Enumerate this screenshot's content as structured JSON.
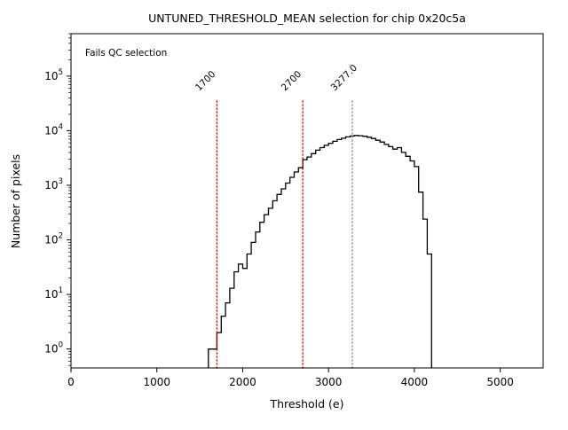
{
  "chart_data": {
    "type": "bar",
    "title": "UNTUNED_THRESHOLD_MEAN selection for chip 0x20c5a",
    "xlabel": "Threshold (e)",
    "ylabel": "Number of pixels",
    "x_scale": "linear",
    "y_scale": "log",
    "xlim": [
      0,
      5500
    ],
    "ylim": [
      0.45,
      600000
    ],
    "x_ticks": [
      0,
      1000,
      2000,
      3000,
      4000,
      5000
    ],
    "y_tick_exponents": [
      0,
      1,
      2,
      3,
      4,
      5
    ],
    "grid": false,
    "legend": null,
    "histogram": {
      "bin_start": 1600,
      "bin_width": 50,
      "color": "#000000",
      "counts": [
        1,
        1,
        2,
        4,
        7,
        13,
        26,
        36,
        30,
        55,
        90,
        140,
        210,
        290,
        380,
        520,
        680,
        860,
        1100,
        1400,
        1750,
        2100,
        2950,
        3300,
        3800,
        4400,
        4900,
        5400,
        5900,
        6400,
        6900,
        7300,
        7700,
        8000,
        8200,
        8100,
        7900,
        7600,
        7200,
        6700,
        6200,
        5600,
        5100,
        4600,
        4900,
        4000,
        3400,
        2800,
        2200,
        750,
        240,
        55
      ]
    },
    "vlines": [
      {
        "x": 1700,
        "label": "1700",
        "color": "#ee0000"
      },
      {
        "x": 2700,
        "label": "2700",
        "color": "#ee0000"
      },
      {
        "x": 3277.0,
        "label": "3277.0",
        "color": "#8c8c8c"
      }
    ],
    "annotations": [
      {
        "text": "Fails QC selection",
        "color": "#ee0000",
        "position": "top-left"
      }
    ]
  }
}
